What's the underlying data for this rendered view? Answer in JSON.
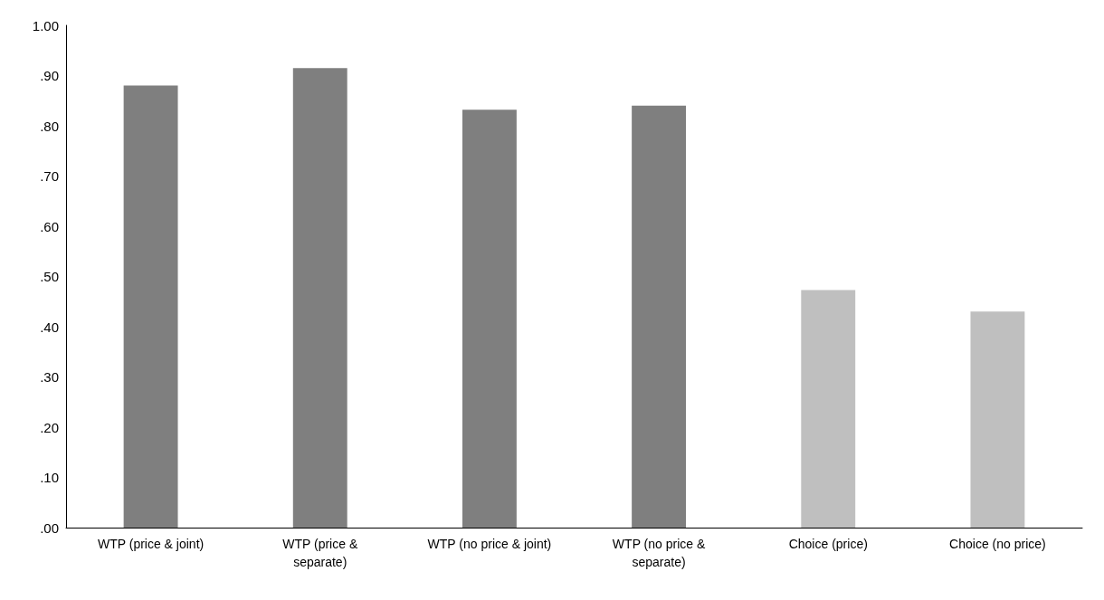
{
  "chart_data": {
    "type": "bar",
    "categories": [
      "WTP (price & joint)",
      "WTP (price &\nseparate)",
      "WTP (no price & joint)",
      "WTP (no price &\nseparate)",
      "Choice (price)",
      "Choice (no price)"
    ],
    "values": [
      0.88,
      0.915,
      0.832,
      0.84,
      0.473,
      0.43
    ],
    "colors": [
      "#7f7f7f",
      "#7f7f7f",
      "#7f7f7f",
      "#7f7f7f",
      "#bfbfbf",
      "#bfbfbf"
    ],
    "ylim": [
      0,
      1
    ],
    "yticks": [
      {
        "value": 0,
        "label": ".00"
      },
      {
        "value": 0.1,
        "label": ".10"
      },
      {
        "value": 0.2,
        "label": ".20"
      },
      {
        "value": 0.3,
        "label": ".30"
      },
      {
        "value": 0.4,
        "label": ".40"
      },
      {
        "value": 0.5,
        "label": ".50"
      },
      {
        "value": 0.6,
        "label": ".60"
      },
      {
        "value": 0.7,
        "label": ".70"
      },
      {
        "value": 0.8,
        "label": ".80"
      },
      {
        "value": 0.9,
        "label": ".90"
      },
      {
        "value": 1,
        "label": "1.00"
      }
    ],
    "grid": false
  }
}
